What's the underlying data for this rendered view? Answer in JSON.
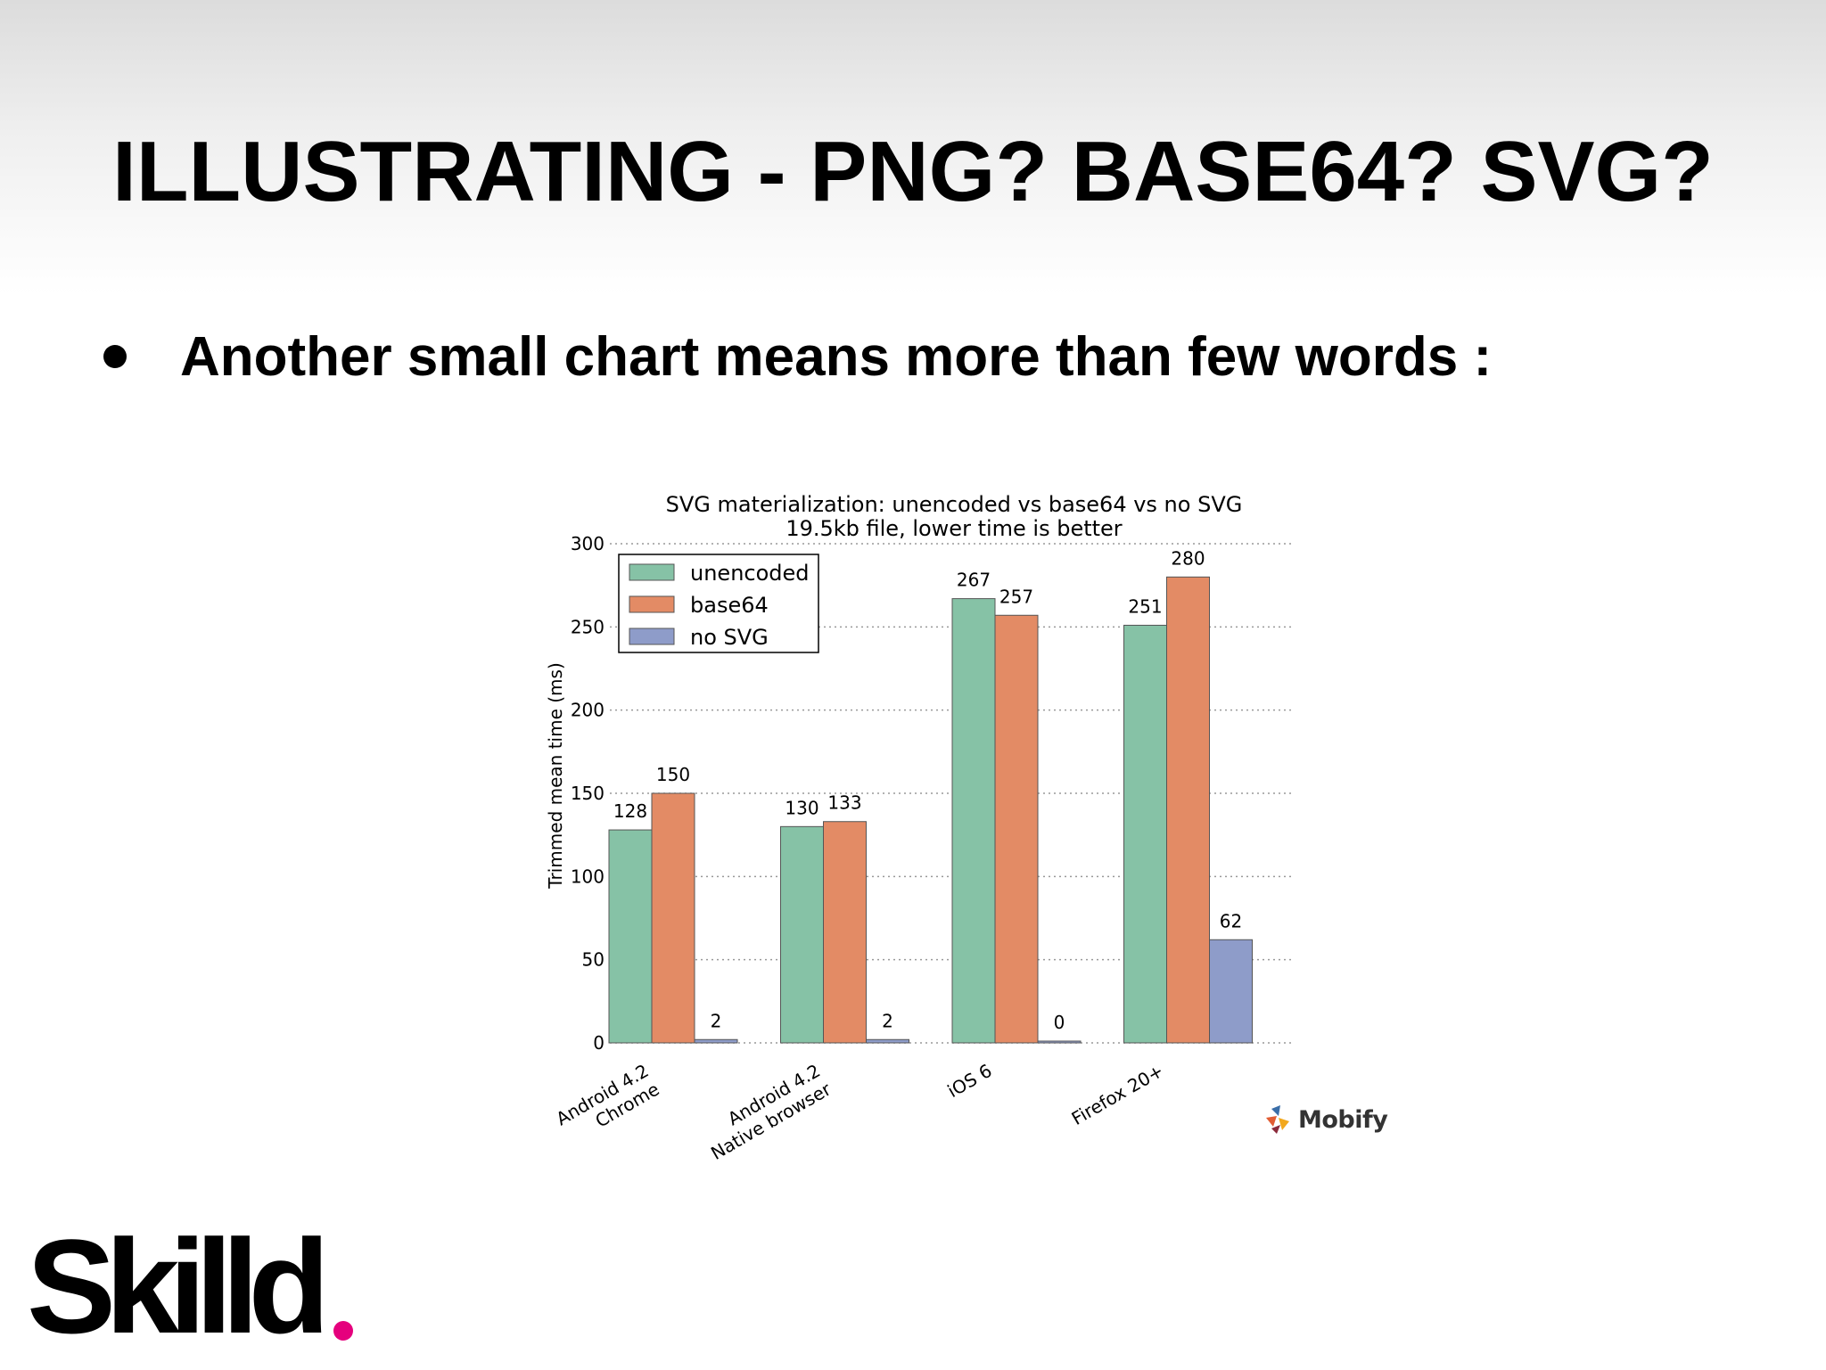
{
  "slide": {
    "title": "ILLUSTRATING - PNG? BASE64? SVG?",
    "bullet": "Another small chart means more than few words :"
  },
  "chart_data": {
    "type": "bar",
    "title": "SVG materialization: unencoded vs base64 vs no SVG",
    "subtitle": "19.5kb file, lower time is better",
    "xlabel": "",
    "ylabel": "Trimmed mean time (ms)",
    "ylim": [
      0,
      300
    ],
    "yticks": [
      0,
      50,
      100,
      150,
      200,
      250,
      300
    ],
    "grid": "horizontal dotted",
    "legend_position": "top-left",
    "categories": [
      [
        "Android 4.2",
        "Chrome"
      ],
      [
        "Android 4.2",
        "Native browser"
      ],
      [
        "iOS 6"
      ],
      [
        "Firefox 20+"
      ]
    ],
    "series": [
      {
        "name": "unencoded",
        "color": "#86c2a6",
        "values": [
          128,
          130,
          267,
          251
        ]
      },
      {
        "name": "base64",
        "color": "#e38b65",
        "values": [
          150,
          133,
          257,
          280
        ]
      },
      {
        "name": "no SVG",
        "color": "#8e9cc9",
        "values": [
          2,
          2,
          0,
          62
        ]
      }
    ]
  },
  "mobify": {
    "label": "Mobify",
    "colors": [
      "#3a6ea8",
      "#e25d33",
      "#f2a81d",
      "#8b2a3b"
    ]
  },
  "brand": {
    "label": "Skilld",
    "dot_color": "#e5007d"
  }
}
